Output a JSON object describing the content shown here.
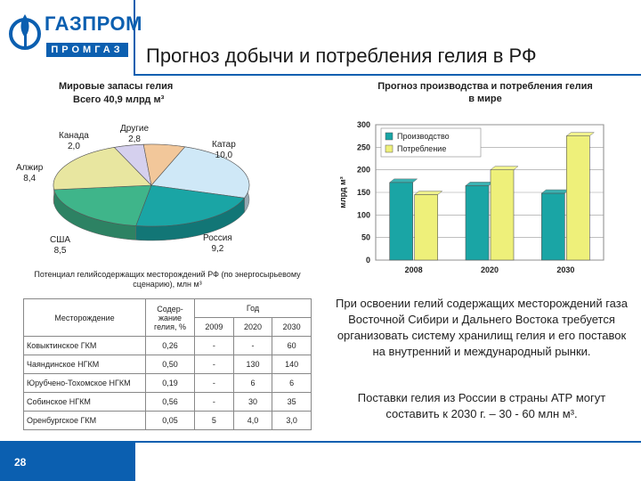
{
  "logo": {
    "line1": "ГАЗПРОМ",
    "line2": "ПРОМГАЗ"
  },
  "header": {
    "title": "Прогноз добычи и потребления гелия в РФ"
  },
  "page_number": "28",
  "pie": {
    "title": "Мировые запасы гелия",
    "subtitle": "Всего 40,9 млрд м³",
    "slices": [
      {
        "name": "Катар",
        "value": 10.0,
        "label": "10,0",
        "color": "#cfe8f7"
      },
      {
        "name": "Россия",
        "value": 9.2,
        "label": "9,2",
        "color": "#1aa5a5"
      },
      {
        "name": "США",
        "value": 8.5,
        "label": "8,5",
        "color": "#3fb58a"
      },
      {
        "name": "Алжир",
        "value": 8.4,
        "label": "8,4",
        "color": "#e8e6a0"
      },
      {
        "name": "Канада",
        "value": 2.0,
        "label": "2,0",
        "color": "#d5d0ee"
      },
      {
        "name": "Другие",
        "value": 2.8,
        "label": "2,8",
        "color": "#f2c79a"
      }
    ]
  },
  "chart_data": {
    "type": "bar",
    "title": "Прогноз производства и потребления гелия в мире",
    "ylabel": "млрд м³",
    "categories": [
      "2008",
      "2020",
      "2030"
    ],
    "ylim": [
      0,
      300
    ],
    "yticks": [
      "0",
      "50",
      "100",
      "150",
      "200",
      "250",
      "300"
    ],
    "legend_position": "top-left",
    "series": [
      {
        "name": "Производство",
        "values": [
          172,
          165,
          148
        ],
        "color": "#1aa5a5"
      },
      {
        "name": "Потребление",
        "values": [
          145,
          200,
          275
        ],
        "color": "#eef07a"
      }
    ]
  },
  "table": {
    "caption": "Потенциал гелийсодержащих месторождений РФ (по энергосырьевому сценарию), млн м³",
    "headers": {
      "field": "Месторождение",
      "content": "Содер-жание гелия, %",
      "year": "Год",
      "years": [
        "2009",
        "2020",
        "2030"
      ]
    },
    "rows": [
      {
        "name": "Ковыктинское ГКМ",
        "content": "0,26",
        "y2009": "-",
        "y2020": "-",
        "y2030": "60"
      },
      {
        "name": "Чаяндинское НГКМ",
        "content": "0,50",
        "y2009": "-",
        "y2020": "130",
        "y2030": "140"
      },
      {
        "name": "Юрубчено-Тохомское НГКМ",
        "content": "0,19",
        "y2009": "-",
        "y2020": "6",
        "y2030": "6"
      },
      {
        "name": "Собинское НГКМ",
        "content": "0,56",
        "y2009": "-",
        "y2020": "30",
        "y2030": "35"
      },
      {
        "name": "Оренбургское ГКМ",
        "content": "0,05",
        "y2009": "5",
        "y2020": "4,0",
        "y2030": "3,0"
      }
    ]
  },
  "text": {
    "para1": "При освоении гелий содержащих месторождений газа Восточной Сибири и Дальнего Востока требуется организовать систему хранилищ гелия и его поставок на внутренний и международный рынки.",
    "para2": "Поставки гелия из России в страны АТР могут составить к 2030 г. – 30 - 60 млн м³."
  }
}
